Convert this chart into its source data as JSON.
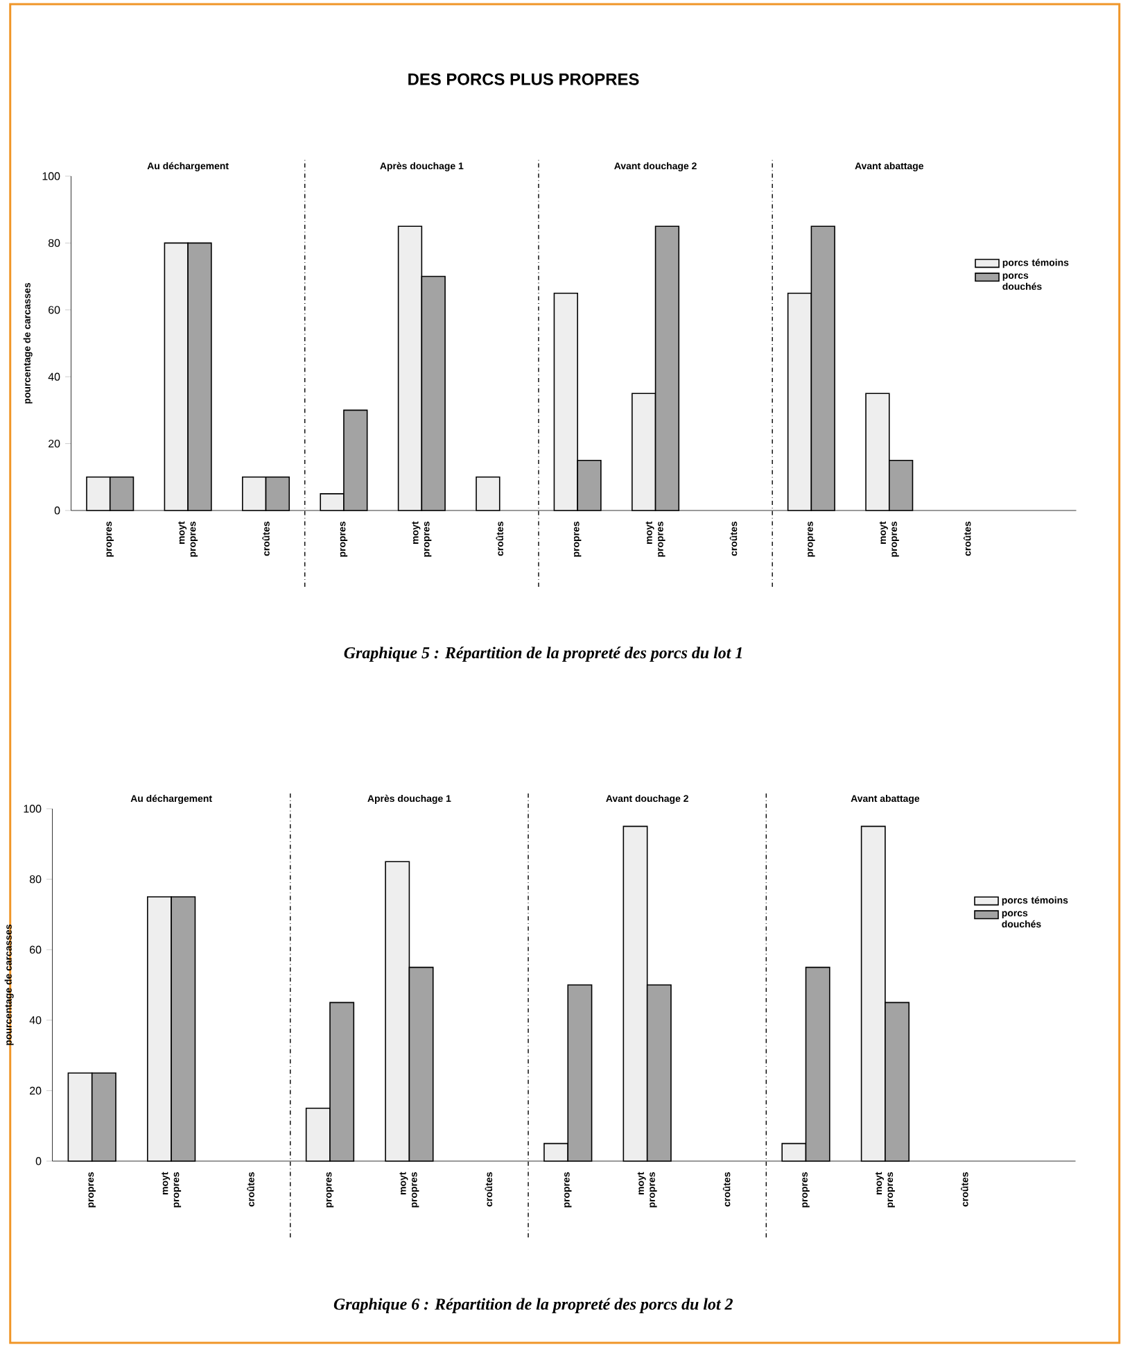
{
  "chart_data": [
    {
      "type": "bar",
      "title": "DES PORCS PLUS PROPRES",
      "ylabel": "pourcentage de carcasses",
      "categories": [
        "propres",
        "moyt propres",
        "croûtes",
        "propres",
        "moyt propres",
        "croûtes",
        "propres",
        "moyt propres",
        "croûtes",
        "propres",
        "moyt propres",
        "croûtes"
      ],
      "series": [
        {
          "name": "porcs témoins",
          "color": "#eeeeee",
          "values": [
            10,
            80,
            10,
            5,
            85,
            10,
            65,
            35,
            0,
            65,
            35,
            0
          ]
        },
        {
          "name": "porcs douchés",
          "color": "#a3a3a3",
          "values": [
            10,
            80,
            10,
            30,
            70,
            0,
            15,
            85,
            0,
            85,
            15,
            0
          ]
        }
      ],
      "ylim": [
        0,
        100
      ],
      "yticks": [
        0,
        20,
        40,
        60,
        80,
        100
      ],
      "legend": "right",
      "grid": false,
      "annotations": [
        "Au déchargement",
        "Après douchage 1",
        "Avant douchage 2",
        "Avant abattage",
        "Graphique 5 : Répartition de la propreté des porcs du lot 1"
      ]
    },
    {
      "type": "bar",
      "ylabel": "pourcentage de carcasses",
      "categories": [
        "propres",
        "moyt propres",
        "croûtes",
        "propres",
        "moyt propres",
        "croûtes",
        "propres",
        "moyt propres",
        "croûtes",
        "propres",
        "moyt propres",
        "croûtes"
      ],
      "series": [
        {
          "name": "porcs témoins",
          "color": "#eeeeee",
          "values": [
            25,
            75,
            0,
            15,
            85,
            0,
            5,
            95,
            0,
            5,
            95,
            0
          ]
        },
        {
          "name": "porcs douchés",
          "color": "#a3a3a3",
          "values": [
            25,
            75,
            0,
            45,
            55,
            0,
            50,
            50,
            0,
            55,
            45,
            0
          ]
        }
      ],
      "ylim": [
        0,
        100
      ],
      "yticks": [
        0,
        20,
        40,
        60,
        80,
        100
      ],
      "legend": "right",
      "grid": false,
      "annotations": [
        "Au déchargement",
        "Après douchage 1",
        "Avant douchage 2",
        "Avant abattage",
        "Graphique 6 : Répartition de la propreté des porcs du lot 2"
      ]
    }
  ]
}
